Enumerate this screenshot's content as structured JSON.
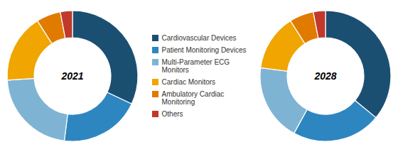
{
  "chart_data": [
    {
      "type": "pie",
      "title": "2021",
      "categories": [
        "Cardiovascular Devices",
        "Patient Monitoring Devices",
        "Multi-Parameter ECG\nMonitors",
        "Cardiac Monitors",
        "Ambulatory Cardiac\nMonitoring",
        "Others"
      ],
      "values": [
        32,
        20,
        22,
        17,
        6,
        3
      ],
      "colors": [
        "#1b4f72",
        "#2e86c1",
        "#7fb3d3",
        "#f0a500",
        "#e07b00",
        "#c0392b"
      ],
      "legend": "center"
    },
    {
      "type": "pie",
      "title": "2028",
      "categories": [
        "Cardiovascular Devices",
        "Patient Monitoring Devices",
        "Multi-Parameter ECG\nMonitors",
        "Cardiac Monitors",
        "Ambulatory Cardiac\nMonitoring",
        "Others"
      ],
      "values": [
        36,
        22,
        19,
        14,
        6,
        3
      ],
      "colors": [
        "#1b4f72",
        "#2e86c1",
        "#7fb3d3",
        "#f0a500",
        "#e07b00",
        "#c0392b"
      ],
      "legend": "center"
    }
  ]
}
